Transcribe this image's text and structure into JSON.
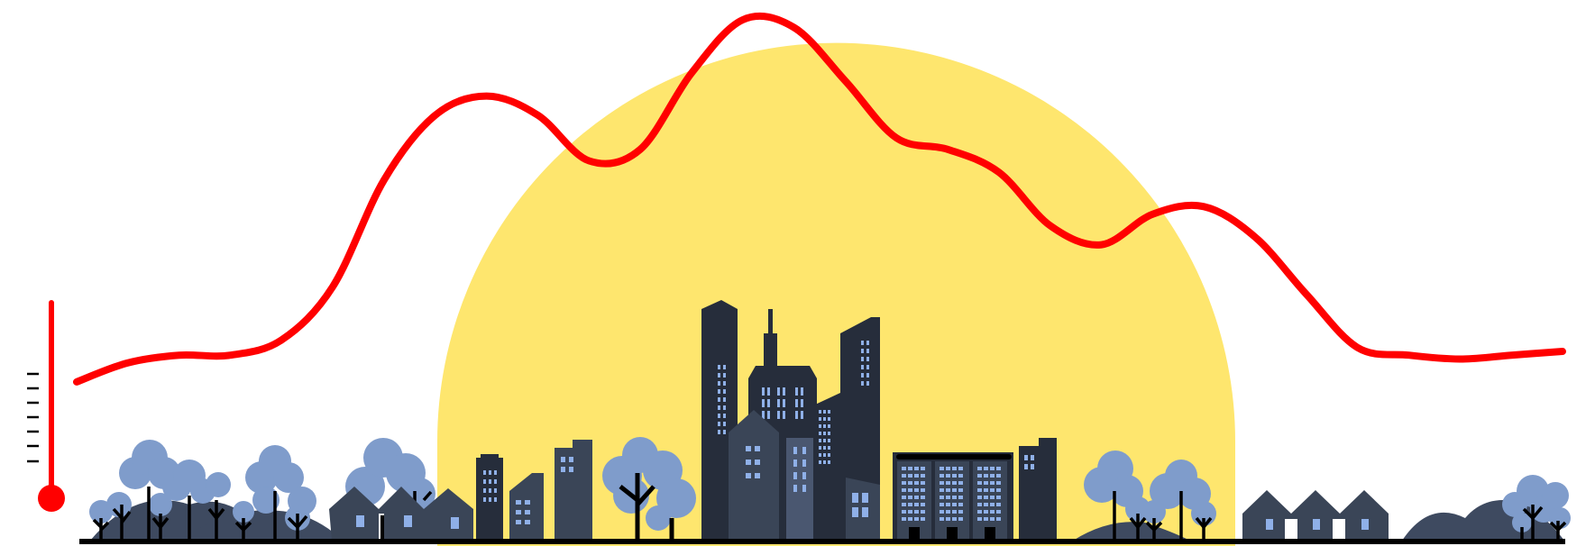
{
  "scene": {
    "description_free": true,
    "colors": {
      "sun": "#FEE66E",
      "temperature_line": "#FF0000",
      "building_dark": "#262D3B",
      "building_mid": "#3A4557",
      "building_light": "#4A5770",
      "window": "#8FB0E8",
      "tree": "#7F9CCB",
      "hill": "#3E4A60",
      "ground": "#000000",
      "trunk": "#000000"
    },
    "icons": [
      "thermometer-icon",
      "sun-icon",
      "skyline-icon",
      "tree-icon",
      "house-icon",
      "hill-icon"
    ],
    "temperature_profile": {
      "note_free": true,
      "values": [
        0.05,
        0.1,
        0.12,
        0.12,
        0.16,
        0.3,
        0.58,
        0.75,
        0.8,
        0.75,
        0.63,
        0.66,
        0.86,
        1.0,
        0.98,
        0.84,
        0.69,
        0.66,
        0.6,
        0.46,
        0.41,
        0.49,
        0.51,
        0.43,
        0.28,
        0.14,
        0.12,
        0.11,
        0.12,
        0.13
      ]
    }
  }
}
